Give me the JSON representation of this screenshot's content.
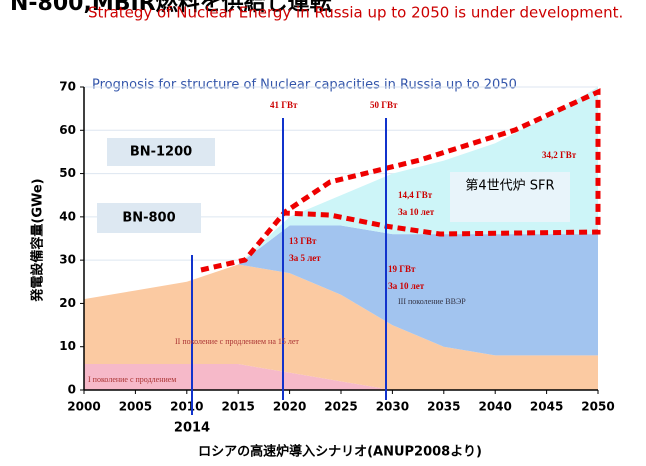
{
  "header": "N-800,MBIR燃料を供給し運転",
  "subtitle": "Strategy of Nuclear Energy in Russia up to 2050 is under development.",
  "footer": "ロシアの高速炉導入シナリオ(ANUP2008より)",
  "chart_data": {
    "type": "area",
    "stacked": true,
    "title": "Prognosis for structure of Nuclear capacities in Russia up to 2050",
    "y_label": "発電設備容量(GWe)",
    "x": [
      2000,
      2005,
      2010,
      2015,
      2020,
      2025,
      2030,
      2035,
      2040,
      2045,
      2050
    ],
    "series": [
      {
        "name": "I поколение с продлением",
        "color": "#f6b9c9",
        "values": [
          6,
          6,
          6,
          6,
          4,
          2,
          0,
          0,
          0,
          0,
          0
        ]
      },
      {
        "name": "II поколение с продлением на 15 лет",
        "color": "#fbcaa2",
        "values": [
          15,
          17,
          19,
          23,
          23,
          20,
          15,
          10,
          8,
          8,
          8
        ]
      },
      {
        "name": "III поколение ВВЭР",
        "color": "#a2c4ef",
        "values": [
          0,
          0,
          0,
          0,
          11,
          16,
          21,
          26,
          28,
          28,
          28
        ]
      },
      {
        "name": "第4世代炉 SFR",
        "color": "#cdf5f8",
        "values": [
          0,
          0,
          0,
          0,
          2,
          7,
          14,
          17,
          21,
          27,
          34
        ]
      }
    ],
    "xlim": [
      2000,
      2050
    ],
    "xticks": [
      2000,
      2005,
      2010,
      2015,
      2020,
      2025,
      2030,
      2035,
      2040,
      2045,
      2050
    ],
    "ylim": [
      0,
      70
    ],
    "yticks": [
      0,
      10,
      20,
      30,
      40,
      50,
      60,
      70
    ],
    "grid": true,
    "annotations": [
      "BN-1200",
      "BN-800",
      "41 ГВт",
      "50 ГВт",
      "13 ГВт",
      "За 5 лет",
      "14,4 ГВт",
      "За 10 лет",
      "19 ГВт",
      "За 10 лет",
      "34,2 ГВт",
      "2014"
    ]
  }
}
